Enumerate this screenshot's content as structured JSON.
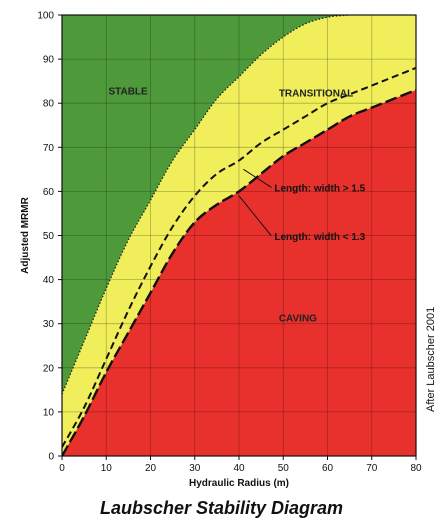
{
  "chart_data": {
    "type": "area",
    "title": "Laubscher Stability Diagram",
    "xlabel": "Hydraulic Radius (m)",
    "ylabel": "Adjusted MRMR",
    "xlim": [
      0,
      80
    ],
    "ylim": [
      0,
      100
    ],
    "x_ticks": [
      0,
      10,
      20,
      30,
      40,
      50,
      60,
      70,
      80
    ],
    "y_ticks": [
      0,
      10,
      20,
      30,
      40,
      50,
      60,
      70,
      80,
      90,
      100
    ],
    "grid": true,
    "zones": [
      {
        "name": "STABLE",
        "color": "#4e9a3a"
      },
      {
        "name": "TRANSITIONAL",
        "color": "#f0ee5a"
      },
      {
        "name": "CAVING",
        "color": "#e8302d"
      }
    ],
    "curves": {
      "stable_boundary": {
        "x": [
          0,
          5,
          10,
          15,
          20,
          25,
          30,
          35,
          40,
          45,
          50,
          55,
          60,
          65
        ],
        "y": [
          14,
          26,
          38,
          49,
          58,
          67,
          74,
          81,
          86,
          91,
          95,
          98,
          99.5,
          100
        ]
      },
      "length_width_gt_1_5": {
        "x": [
          0,
          5,
          10,
          15,
          20,
          25,
          30,
          35,
          40,
          45,
          50,
          55,
          60,
          65,
          70,
          75,
          80
        ],
        "y": [
          2,
          11,
          22,
          33,
          43,
          52,
          59,
          64,
          67,
          71,
          74,
          77,
          80,
          82,
          84,
          86,
          88
        ]
      },
      "caving_boundary": {
        "x": [
          0,
          5,
          10,
          15,
          20,
          25,
          30,
          35,
          40,
          45,
          50,
          55,
          60,
          65,
          70,
          75,
          80
        ],
        "y": [
          0,
          9,
          19,
          28,
          37,
          46,
          53,
          57,
          60,
          64,
          68,
          71,
          74,
          77,
          79,
          81,
          83
        ]
      }
    },
    "annotations": [
      {
        "text": "Length: width > 1.5",
        "point": [
          41,
          65
        ],
        "label_at": [
          48,
          60
        ]
      },
      {
        "text": "Length: width < 1.3",
        "point": [
          40,
          59
        ],
        "label_at": [
          48,
          49
        ]
      }
    ],
    "source_note": "After Laubscher 2001"
  }
}
